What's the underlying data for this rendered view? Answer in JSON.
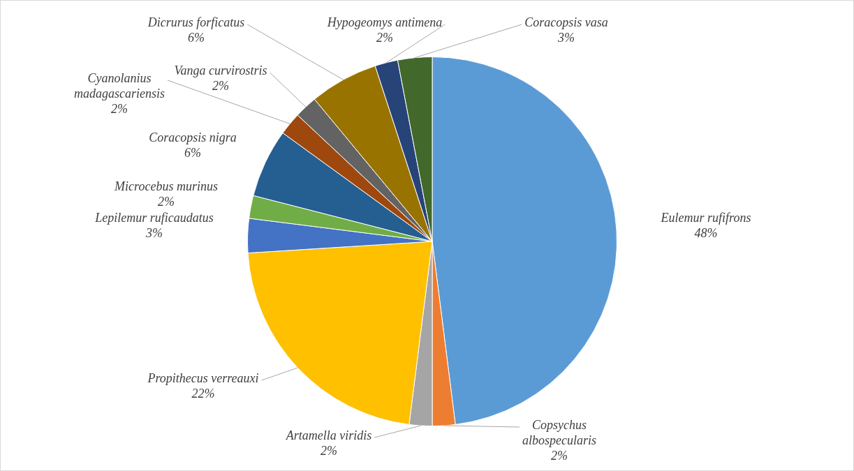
{
  "chart_data": {
    "type": "pie",
    "categories": [
      "Eulemur rufifrons",
      "Copsychus albospecularis",
      "Artamella viridis",
      "Propithecus verreauxi",
      "Lepilemur ruficaudatus",
      "Microcebus murinus",
      "Coracopsis nigra",
      "Cyanolanius madagascariensis",
      "Vanga curvirostris",
      "Dicrurus forficatus",
      "Hypogeomys antimena",
      "Coracopsis vasa"
    ],
    "values": [
      48,
      2,
      2,
      22,
      3,
      2,
      6,
      2,
      2,
      6,
      2,
      3
    ],
    "colors": [
      "#5b9bd5",
      "#ed7d31",
      "#a5a5a5",
      "#ffc000",
      "#4472c4",
      "#70ad47",
      "#255e91",
      "#9e480e",
      "#636363",
      "#997300",
      "#264478",
      "#43682b"
    ],
    "value_labels": [
      "48%",
      "2%",
      "2%",
      "22%",
      "3%",
      "2%",
      "6%",
      "2%",
      "2%",
      "6%",
      "2%",
      "3%"
    ],
    "legend": false
  }
}
